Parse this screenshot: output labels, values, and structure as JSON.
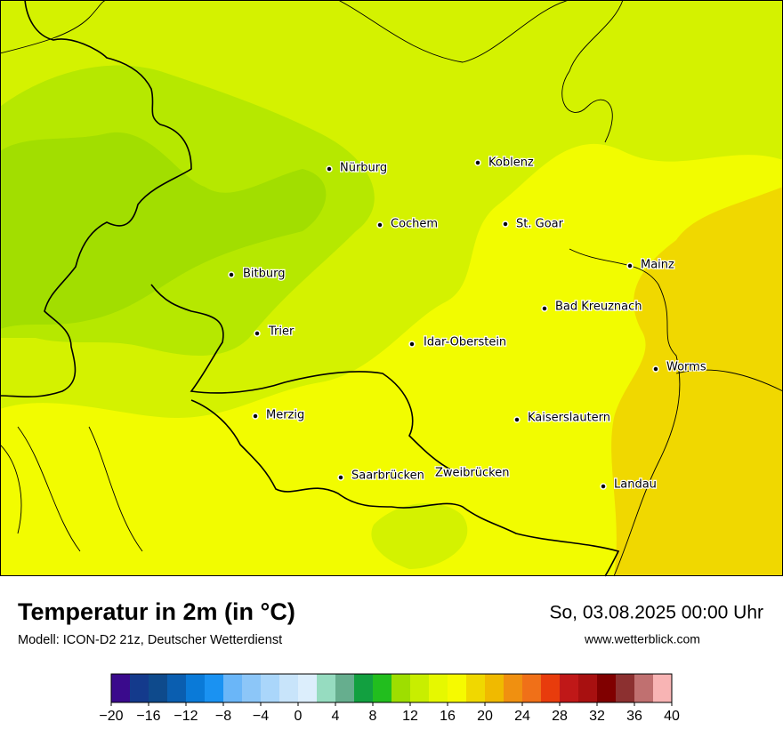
{
  "map": {
    "cities": [
      "Nürburg",
      "Koblenz",
      "Cochem",
      "St. Goar",
      "Mainz",
      "Bitburg",
      "Bad Kreuznach",
      "Trier",
      "Idar-Oberstein",
      "Worms",
      "Merzig",
      "Kaiserslautern",
      "Saarbrücken",
      "Zweibrücken",
      "Landau"
    ]
  },
  "footer": {
    "title": "Temperatur in 2m (in °C)",
    "subtitle": "Modell: ICON-D2 21z, Deutscher Wetterdienst",
    "date": "So, 03.08.2025 00:00 Uhr",
    "website": "www.wetterblick.com"
  },
  "colorbar": {
    "range": [
      -20,
      40
    ],
    "colors": [
      "#3a0a8c",
      "#143a8c",
      "#0e4a8c",
      "#0a5eb0",
      "#0a7ad8",
      "#1a92f2",
      "#6ab6f8",
      "#8cc6f8",
      "#aad6fa",
      "#c8e4fa",
      "#dceefc",
      "#96dcc0",
      "#66ae8e",
      "#12a040",
      "#22be1e",
      "#9ede00",
      "#c8ee00",
      "#e6f800",
      "#f6fa00",
      "#f0d800",
      "#f0ba00",
      "#f09010",
      "#f07018",
      "#e83c0c",
      "#c01818",
      "#a81010",
      "#800000",
      "#8c3030",
      "#c07070",
      "#f8b4b4"
    ],
    "ticks": [
      {
        "value": -20,
        "label": "−20"
      },
      {
        "value": -16,
        "label": "−16"
      },
      {
        "value": -12,
        "label": "−12"
      },
      {
        "value": -8,
        "label": "−8"
      },
      {
        "value": -4,
        "label": "−4"
      },
      0,
      4,
      8,
      12,
      16,
      20,
      24,
      28,
      32,
      36,
      40
    ]
  }
}
